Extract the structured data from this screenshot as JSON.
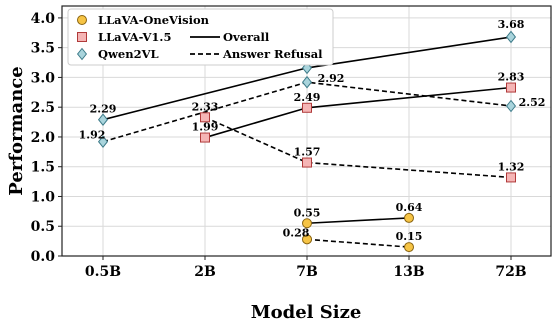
{
  "chart_data": {
    "type": "line",
    "xlabel": "Model Size",
    "ylabel": "Performance",
    "categories": [
      "0.5B",
      "2B",
      "7B",
      "13B",
      "72B"
    ],
    "y_ticks": [
      "0.0",
      "0.5",
      "1.0",
      "1.5",
      "2.0",
      "2.5",
      "3.0",
      "3.5",
      "4.0"
    ],
    "ylim": [
      0,
      4.2
    ],
    "grid": true,
    "legend_position": "top-left",
    "models": [
      {
        "name": "LLaVA-OneVision",
        "marker": "circle",
        "color": "#f6c445",
        "edge": "#8a6410",
        "overall": [
          null,
          null,
          0.55,
          0.64,
          null
        ],
        "answer_refusal": [
          null,
          null,
          0.28,
          0.15,
          null
        ],
        "overall_labels": [
          "",
          "",
          "0.55",
          "0.64",
          ""
        ],
        "refusal_labels": [
          "",
          "",
          "0.28",
          "0.15",
          ""
        ]
      },
      {
        "name": "LLaVA-V1.5",
        "marker": "square",
        "color": "#f5b5b5",
        "edge": "#b03a3a",
        "overall": [
          null,
          1.99,
          2.49,
          null,
          2.83
        ],
        "answer_refusal": [
          null,
          2.33,
          1.57,
          null,
          1.32
        ],
        "overall_labels": [
          "",
          "1.99",
          "2.49",
          "",
          "2.83"
        ],
        "refusal_labels": [
          "",
          "2.33",
          "1.57",
          "",
          "1.32"
        ]
      },
      {
        "name": "Qwen2VL",
        "marker": "diamond",
        "color": "#a9d4dc",
        "edge": "#3c7a88",
        "overall": [
          2.29,
          null,
          3.16,
          null,
          3.68
        ],
        "answer_refusal": [
          1.92,
          null,
          2.92,
          null,
          2.52
        ],
        "overall_labels": [
          "2.29",
          "",
          "3.16",
          "",
          "3.68"
        ],
        "refusal_labels": [
          "1.92",
          "",
          "2.92",
          "",
          "2.52"
        ]
      }
    ],
    "line_styles": [
      {
        "name": "Overall",
        "dash": "solid"
      },
      {
        "name": "Answer Refusal",
        "dash": "dashed"
      }
    ]
  }
}
